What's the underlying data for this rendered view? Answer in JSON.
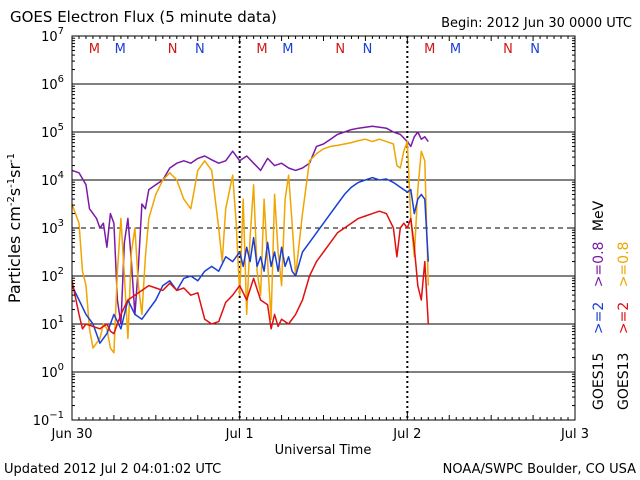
{
  "header": {
    "title": "GOES Electron Flux (5 minute data)",
    "begin": "Begin: 2012 Jun 30 0000 UTC"
  },
  "footer": {
    "updated": "Updated 2012 Jul  2 04:01:02 UTC",
    "source": "NOAA/SWPC Boulder, CO USA"
  },
  "colors": {
    "purple": "#7a1aa6",
    "gold": "#f0a500",
    "blue": "#1a3fd6",
    "red": "#e01010",
    "mark_red": "#d01818",
    "mark_blue": "#1a3fd6"
  },
  "chart_data": {
    "type": "line",
    "title": "GOES Electron Flux (5 minute data)",
    "xlabel": "Universal Time",
    "ylabel": "Particles cm-2s-1sr-1",
    "ylabel_parts": [
      "Particles cm",
      "-2",
      "s",
      "-1",
      "sr",
      "-1"
    ],
    "x_unit": "hours since 2012 Jun 30 0000 UTC",
    "xlim": [
      0,
      72
    ],
    "ylim_log10": [
      -1,
      7
    ],
    "y_tick_exponents": [
      -1,
      0,
      1,
      2,
      3,
      4,
      5,
      6,
      7
    ],
    "y_tick_base": "10",
    "x_ticks": [
      {
        "x": 0,
        "label": "Jun 30"
      },
      {
        "x": 24,
        "label": "Jul 1"
      },
      {
        "x": 48,
        "label": "Jul 2"
      },
      {
        "x": 72,
        "label": "Jul 3"
      }
    ],
    "threshold_log10": 3,
    "grid": true,
    "event_markers": [
      {
        "x": 3.2,
        "label": "M",
        "color": "#d01818"
      },
      {
        "x": 6.9,
        "label": "M",
        "color": "#1a3fd6"
      },
      {
        "x": 14.4,
        "label": "N",
        "color": "#d01818"
      },
      {
        "x": 18.3,
        "label": "N",
        "color": "#1a3fd6"
      },
      {
        "x": 27.2,
        "label": "M",
        "color": "#d01818"
      },
      {
        "x": 30.9,
        "label": "M",
        "color": "#1a3fd6"
      },
      {
        "x": 38.4,
        "label": "N",
        "color": "#d01818"
      },
      {
        "x": 42.3,
        "label": "N",
        "color": "#1a3fd6"
      },
      {
        "x": 51.2,
        "label": "M",
        "color": "#d01818"
      },
      {
        "x": 54.9,
        "label": "M",
        "color": "#1a3fd6"
      },
      {
        "x": 62.4,
        "label": "N",
        "color": "#d01818"
      },
      {
        "x": 66.3,
        "label": "N",
        "color": "#1a3fd6"
      }
    ],
    "legend": {
      "position": "right",
      "rows": [
        {
          "satellite": "GOES13",
          "entries": [
            {
              "label": ">=2",
              "color": "#e01010"
            },
            {
              "label": ">=0.8",
              "color": "#f0a500"
            }
          ]
        },
        {
          "satellite": "GOES15",
          "entries": [
            {
              "label": ">=2",
              "color": "#1a3fd6"
            },
            {
              "label": ">=0.8",
              "color": "#7a1aa6"
            }
          ]
        }
      ],
      "unit": "MeV"
    },
    "series": [
      {
        "name": "GOES15 >=0.8 MeV",
        "color": "#7a1aa6",
        "points": [
          [
            0,
            4.2
          ],
          [
            1,
            4.15
          ],
          [
            2,
            3.9
          ],
          [
            2.5,
            3.4
          ],
          [
            3,
            3.3
          ],
          [
            3.5,
            3.2
          ],
          [
            4,
            3.0
          ],
          [
            4.5,
            3.1
          ],
          [
            5,
            2.6
          ],
          [
            5.5,
            3.3
          ],
          [
            6,
            3.1
          ],
          [
            6.5,
            1.5
          ],
          [
            7,
            1.0
          ],
          [
            7.5,
            2.7
          ],
          [
            8,
            3.2
          ],
          [
            8.5,
            2.3
          ],
          [
            9,
            1.2
          ],
          [
            9.5,
            2.2
          ],
          [
            10,
            3.5
          ],
          [
            10.5,
            3.4
          ],
          [
            11,
            3.8
          ],
          [
            12,
            3.9
          ],
          [
            13,
            4.0
          ],
          [
            14,
            4.25
          ],
          [
            15,
            4.35
          ],
          [
            16,
            4.4
          ],
          [
            17,
            4.35
          ],
          [
            18,
            4.45
          ],
          [
            19,
            4.5
          ],
          [
            20,
            4.42
          ],
          [
            21,
            4.35
          ],
          [
            22,
            4.4
          ],
          [
            23,
            4.6
          ],
          [
            24,
            4.4
          ],
          [
            25,
            4.5
          ],
          [
            26,
            4.35
          ],
          [
            27,
            4.2
          ],
          [
            28,
            4.45
          ],
          [
            29,
            4.3
          ],
          [
            30,
            4.35
          ],
          [
            31,
            4.25
          ],
          [
            32,
            4.2
          ],
          [
            33,
            4.25
          ],
          [
            34,
            4.35
          ],
          [
            35,
            4.7
          ],
          [
            36,
            4.75
          ],
          [
            37,
            4.85
          ],
          [
            38,
            4.95
          ],
          [
            39,
            5.0
          ],
          [
            40,
            5.05
          ],
          [
            41,
            5.08
          ],
          [
            42,
            5.1
          ],
          [
            43,
            5.12
          ],
          [
            44,
            5.1
          ],
          [
            45,
            5.08
          ],
          [
            46,
            5.0
          ],
          [
            47,
            4.95
          ],
          [
            48,
            4.8
          ],
          [
            48.5,
            4.7
          ],
          [
            49,
            4.9
          ],
          [
            49.5,
            5.0
          ],
          [
            50,
            4.85
          ],
          [
            50.5,
            4.9
          ],
          [
            51,
            4.8
          ]
        ]
      },
      {
        "name": "GOES13 >=0.8 MeV",
        "color": "#f0a500",
        "points": [
          [
            0,
            3.5
          ],
          [
            1,
            3.1
          ],
          [
            1.5,
            2.1
          ],
          [
            2,
            1.8
          ],
          [
            2.5,
            0.9
          ],
          [
            3,
            0.5
          ],
          [
            3.5,
            0.6
          ],
          [
            4,
            0.7
          ],
          [
            4.5,
            1.0
          ],
          [
            5,
            0.9
          ],
          [
            5.5,
            0.5
          ],
          [
            6,
            0.4
          ],
          [
            6.5,
            2.1
          ],
          [
            7,
            3.2
          ],
          [
            7.5,
            2.0
          ],
          [
            8,
            0.7
          ],
          [
            8.5,
            2.5
          ],
          [
            9,
            3.0
          ],
          [
            9.5,
            1.8
          ],
          [
            10,
            1.2
          ],
          [
            10.5,
            2.4
          ],
          [
            11,
            3.2
          ],
          [
            12,
            3.7
          ],
          [
            13,
            4.0
          ],
          [
            14,
            4.15
          ],
          [
            15,
            4.0
          ],
          [
            16,
            3.6
          ],
          [
            17,
            3.4
          ],
          [
            18,
            4.2
          ],
          [
            19,
            4.4
          ],
          [
            20,
            4.2
          ],
          [
            21,
            3.0
          ],
          [
            21.5,
            2.3
          ],
          [
            22,
            3.4
          ],
          [
            23,
            4.1
          ],
          [
            23.5,
            3.1
          ],
          [
            24,
            1.6
          ],
          [
            24.5,
            3.6
          ],
          [
            25,
            1.2
          ],
          [
            25.5,
            2.8
          ],
          [
            26,
            3.9
          ],
          [
            26.5,
            2.1
          ],
          [
            27,
            1.6
          ],
          [
            27.5,
            3.6
          ],
          [
            28,
            2.3
          ],
          [
            28.5,
            1.1
          ],
          [
            29,
            3.7
          ],
          [
            29.5,
            2.5
          ],
          [
            30,
            1.8
          ],
          [
            30.5,
            3.6
          ],
          [
            31,
            4.1
          ],
          [
            31.5,
            3.1
          ],
          [
            32,
            2.0
          ],
          [
            33,
            3.3
          ],
          [
            34,
            4.4
          ],
          [
            35,
            4.55
          ],
          [
            36,
            4.65
          ],
          [
            37,
            4.7
          ],
          [
            38,
            4.72
          ],
          [
            39,
            4.75
          ],
          [
            40,
            4.78
          ],
          [
            41,
            4.82
          ],
          [
            42,
            4.85
          ],
          [
            43,
            4.8
          ],
          [
            44,
            4.85
          ],
          [
            45,
            4.8
          ],
          [
            46,
            4.75
          ],
          [
            46.5,
            4.3
          ],
          [
            47,
            4.25
          ],
          [
            47.5,
            4.6
          ],
          [
            48,
            4.8
          ],
          [
            48.5,
            3.2
          ],
          [
            49,
            2.4
          ],
          [
            49.5,
            3.8
          ],
          [
            50,
            4.6
          ],
          [
            50.5,
            4.4
          ],
          [
            51,
            1.8
          ]
        ]
      },
      {
        "name": "GOES15 >=2 MeV",
        "color": "#1a3fd6",
        "points": [
          [
            0,
            1.8
          ],
          [
            1,
            1.5
          ],
          [
            2,
            1.2
          ],
          [
            3,
            1.0
          ],
          [
            4,
            0.6
          ],
          [
            5,
            0.8
          ],
          [
            6,
            1.2
          ],
          [
            7,
            0.9
          ],
          [
            8,
            1.5
          ],
          [
            9,
            1.2
          ],
          [
            10,
            1.1
          ],
          [
            11,
            1.3
          ],
          [
            12,
            1.5
          ],
          [
            13,
            1.8
          ],
          [
            14,
            1.9
          ],
          [
            15,
            1.7
          ],
          [
            16,
            1.95
          ],
          [
            17,
            2.0
          ],
          [
            18,
            1.9
          ],
          [
            19,
            2.1
          ],
          [
            20,
            2.2
          ],
          [
            21,
            2.1
          ],
          [
            22,
            2.4
          ],
          [
            23,
            2.3
          ],
          [
            24,
            2.5
          ],
          [
            24.5,
            2.2
          ],
          [
            25,
            2.6
          ],
          [
            25.5,
            2.3
          ],
          [
            26,
            2.8
          ],
          [
            26.5,
            2.2
          ],
          [
            27,
            2.4
          ],
          [
            27.5,
            2.1
          ],
          [
            28,
            2.7
          ],
          [
            28.5,
            2.2
          ],
          [
            29,
            2.5
          ],
          [
            29.5,
            2.1
          ],
          [
            30,
            2.6
          ],
          [
            30.5,
            2.2
          ],
          [
            31,
            2.4
          ],
          [
            31.5,
            2.1
          ],
          [
            32,
            2.0
          ],
          [
            33,
            2.5
          ],
          [
            34,
            2.7
          ],
          [
            35,
            2.9
          ],
          [
            36,
            3.1
          ],
          [
            37,
            3.3
          ],
          [
            38,
            3.5
          ],
          [
            39,
            3.7
          ],
          [
            40,
            3.85
          ],
          [
            41,
            3.95
          ],
          [
            42,
            4.0
          ],
          [
            43,
            4.05
          ],
          [
            44,
            4.0
          ],
          [
            45,
            4.02
          ],
          [
            46,
            3.95
          ],
          [
            47,
            3.85
          ],
          [
            48,
            3.75
          ],
          [
            48.5,
            3.8
          ],
          [
            49,
            3.3
          ],
          [
            49.5,
            3.6
          ],
          [
            50,
            3.7
          ],
          [
            50.5,
            3.6
          ],
          [
            51,
            2.3
          ]
        ]
      },
      {
        "name": "GOES13 >=2 MeV",
        "color": "#e01010",
        "points": [
          [
            0,
            1.9
          ],
          [
            1,
            1.2
          ],
          [
            1.5,
            0.9
          ],
          [
            2,
            1.0
          ],
          [
            3,
            0.95
          ],
          [
            4,
            0.9
          ],
          [
            5,
            1.0
          ],
          [
            5.5,
            0.85
          ],
          [
            6,
            0.8
          ],
          [
            7,
            1.2
          ],
          [
            8,
            1.5
          ],
          [
            9,
            1.6
          ],
          [
            10,
            1.7
          ],
          [
            11,
            1.8
          ],
          [
            12,
            1.75
          ],
          [
            13,
            1.7
          ],
          [
            14,
            1.85
          ],
          [
            15,
            1.7
          ],
          [
            16,
            1.75
          ],
          [
            17,
            1.6
          ],
          [
            18,
            1.65
          ],
          [
            19,
            1.1
          ],
          [
            20,
            1.0
          ],
          [
            21,
            1.05
          ],
          [
            22,
            1.45
          ],
          [
            23,
            1.6
          ],
          [
            24,
            1.8
          ],
          [
            25,
            1.5
          ],
          [
            26,
            1.95
          ],
          [
            27,
            1.5
          ],
          [
            28,
            1.4
          ],
          [
            28.5,
            0.9
          ],
          [
            29,
            1.2
          ],
          [
            29.5,
            0.95
          ],
          [
            30,
            1.1
          ],
          [
            31,
            1.0
          ],
          [
            32,
            1.2
          ],
          [
            33,
            1.5
          ],
          [
            34,
            2.0
          ],
          [
            35,
            2.3
          ],
          [
            36,
            2.5
          ],
          [
            37,
            2.7
          ],
          [
            38,
            2.9
          ],
          [
            39,
            3.0
          ],
          [
            40,
            3.1
          ],
          [
            41,
            3.2
          ],
          [
            42,
            3.25
          ],
          [
            43,
            3.3
          ],
          [
            44,
            3.35
          ],
          [
            45,
            3.3
          ],
          [
            46,
            3.0
          ],
          [
            46.5,
            2.4
          ],
          [
            47,
            3.0
          ],
          [
            47.5,
            3.1
          ],
          [
            48,
            3.0
          ],
          [
            48.5,
            3.2
          ],
          [
            49,
            2.6
          ],
          [
            49.5,
            1.8
          ],
          [
            50,
            1.5
          ],
          [
            50.5,
            2.3
          ],
          [
            51,
            1.0
          ]
        ]
      }
    ]
  }
}
